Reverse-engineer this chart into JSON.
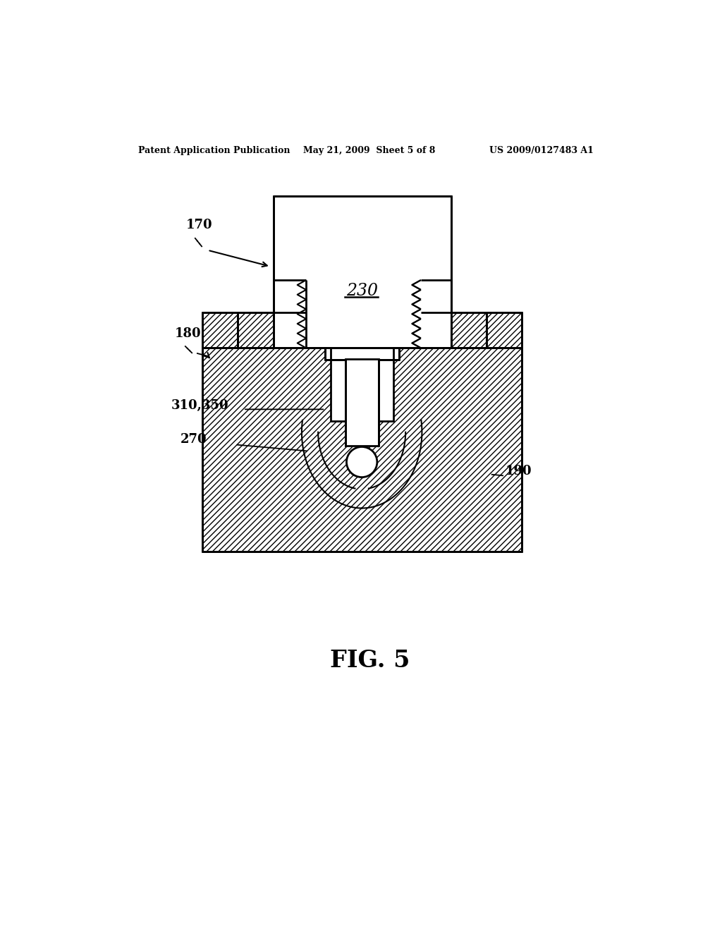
{
  "title": "FIG. 5",
  "header_left": "Patent Application Publication",
  "header_center": "May 21, 2009  Sheet 5 of 8",
  "header_right": "US 2009/0127483 A1",
  "bg_color": "#ffffff",
  "label_170": "170",
  "label_180": "180",
  "label_190": "190",
  "label_230": "230",
  "label_270": "270",
  "label_310_350": "310,350"
}
